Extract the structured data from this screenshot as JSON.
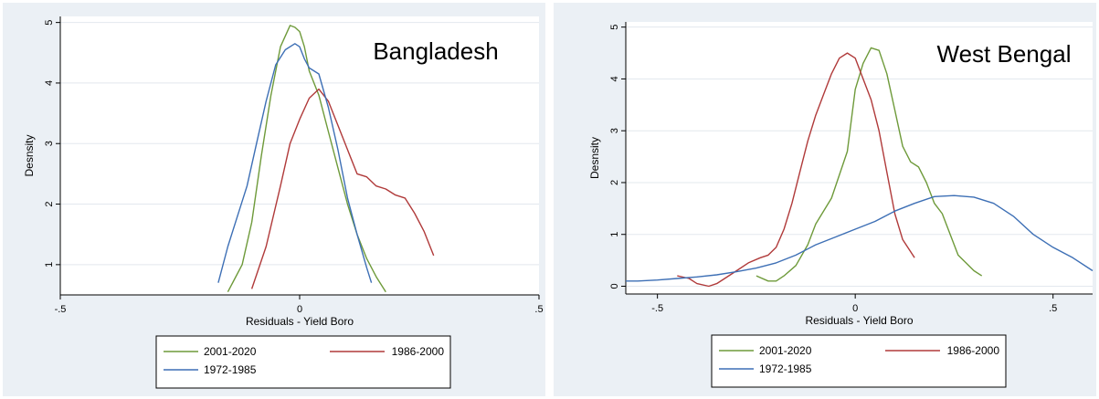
{
  "chart_data": [
    {
      "type": "line",
      "title": "Bangladesh",
      "xlabel": "Residuals - Yield Boro",
      "ylabel": "Desnsity",
      "xlim": [
        -0.5,
        0.5
      ],
      "ylim": [
        0.5,
        5.1
      ],
      "x_ticks": [
        -0.5,
        0,
        0.5
      ],
      "x_tick_labels": [
        "-.5",
        "0",
        ".5"
      ],
      "y_ticks": [
        1,
        2,
        3,
        4,
        5
      ],
      "y_tick_labels": [
        "1",
        "2",
        "3",
        "4",
        "5"
      ],
      "grid": "horizontal",
      "legend_position": "bottom",
      "series": [
        {
          "name": "2001-2020",
          "color": "#6e9a3a",
          "x": [
            -0.15,
            -0.12,
            -0.1,
            -0.08,
            -0.06,
            -0.04,
            -0.02,
            -0.01,
            0,
            0.01,
            0.02,
            0.04,
            0.06,
            0.08,
            0.1,
            0.12,
            0.14,
            0.16,
            0.18
          ],
          "y": [
            0.55,
            1.0,
            1.7,
            2.8,
            3.8,
            4.6,
            4.95,
            4.92,
            4.85,
            4.6,
            4.2,
            3.8,
            3.2,
            2.6,
            2.0,
            1.5,
            1.1,
            0.8,
            0.55
          ]
        },
        {
          "name": "1986-2000",
          "color": "#b03a3a",
          "x": [
            -0.1,
            -0.07,
            -0.04,
            -0.02,
            0,
            0.02,
            0.04,
            0.06,
            0.08,
            0.1,
            0.12,
            0.14,
            0.16,
            0.18,
            0.2,
            0.22,
            0.24,
            0.26,
            0.28
          ],
          "y": [
            0.6,
            1.3,
            2.3,
            3.0,
            3.4,
            3.75,
            3.9,
            3.7,
            3.3,
            2.9,
            2.5,
            2.45,
            2.3,
            2.25,
            2.15,
            2.1,
            1.85,
            1.55,
            1.15
          ]
        },
        {
          "name": "1972-1985",
          "color": "#3d6fb5",
          "x": [
            -0.17,
            -0.15,
            -0.13,
            -0.11,
            -0.09,
            -0.07,
            -0.05,
            -0.03,
            -0.01,
            0,
            0.01,
            0.02,
            0.04,
            0.06,
            0.08,
            0.1,
            0.12,
            0.14,
            0.15
          ],
          "y": [
            0.7,
            1.3,
            1.8,
            2.3,
            3.0,
            3.7,
            4.3,
            4.55,
            4.65,
            4.6,
            4.4,
            4.25,
            4.15,
            3.6,
            2.9,
            2.1,
            1.5,
            0.95,
            0.7
          ]
        }
      ]
    },
    {
      "type": "line",
      "title": "West Bengal",
      "xlabel": "Residuals - Yield Boro",
      "ylabel": "Desnsity",
      "xlim": [
        -0.58,
        0.6
      ],
      "ylim": [
        -0.15,
        5.1
      ],
      "x_ticks": [
        -0.5,
        0,
        0.5
      ],
      "x_tick_labels": [
        "-.5",
        "0",
        ".5"
      ],
      "y_ticks": [
        0,
        1,
        2,
        3,
        4,
        5
      ],
      "y_tick_labels": [
        "0",
        "1",
        "2",
        "3",
        "4",
        "5"
      ],
      "grid": "horizontal",
      "legend_position": "bottom",
      "series": [
        {
          "name": "2001-2020",
          "color": "#6e9a3a",
          "x": [
            -0.25,
            -0.22,
            -0.2,
            -0.18,
            -0.15,
            -0.12,
            -0.1,
            -0.06,
            -0.02,
            0,
            0.02,
            0.04,
            0.06,
            0.08,
            0.1,
            0.12,
            0.14,
            0.16,
            0.18,
            0.2,
            0.22,
            0.24,
            0.26,
            0.28,
            0.3,
            0.32
          ],
          "y": [
            0.2,
            0.1,
            0.1,
            0.2,
            0.4,
            0.8,
            1.2,
            1.7,
            2.6,
            3.8,
            4.3,
            4.6,
            4.55,
            4.1,
            3.4,
            2.7,
            2.4,
            2.3,
            2.0,
            1.6,
            1.4,
            1.0,
            0.6,
            0.45,
            0.3,
            0.2
          ]
        },
        {
          "name": "1986-2000",
          "color": "#b03a3a",
          "x": [
            -0.45,
            -0.42,
            -0.4,
            -0.37,
            -0.35,
            -0.33,
            -0.3,
            -0.27,
            -0.24,
            -0.22,
            -0.2,
            -0.18,
            -0.16,
            -0.14,
            -0.12,
            -0.1,
            -0.08,
            -0.06,
            -0.04,
            -0.02,
            0,
            0.02,
            0.04,
            0.06,
            0.08,
            0.1,
            0.12,
            0.15
          ],
          "y": [
            0.2,
            0.15,
            0.05,
            0.0,
            0.05,
            0.15,
            0.3,
            0.45,
            0.55,
            0.6,
            0.75,
            1.1,
            1.6,
            2.2,
            2.8,
            3.3,
            3.7,
            4.1,
            4.4,
            4.5,
            4.4,
            4.0,
            3.6,
            3.0,
            2.2,
            1.4,
            0.9,
            0.55
          ]
        },
        {
          "name": "1972-1985",
          "color": "#3d6fb5",
          "x": [
            -0.58,
            -0.55,
            -0.5,
            -0.45,
            -0.4,
            -0.35,
            -0.3,
            -0.25,
            -0.2,
            -0.15,
            -0.1,
            -0.05,
            0,
            0.05,
            0.1,
            0.15,
            0.2,
            0.25,
            0.3,
            0.35,
            0.4,
            0.45,
            0.5,
            0.55,
            0.6
          ],
          "y": [
            0.1,
            0.1,
            0.12,
            0.15,
            0.18,
            0.22,
            0.28,
            0.35,
            0.45,
            0.6,
            0.8,
            0.95,
            1.1,
            1.25,
            1.45,
            1.6,
            1.73,
            1.75,
            1.72,
            1.6,
            1.35,
            1.0,
            0.75,
            0.55,
            0.3
          ]
        }
      ]
    }
  ]
}
